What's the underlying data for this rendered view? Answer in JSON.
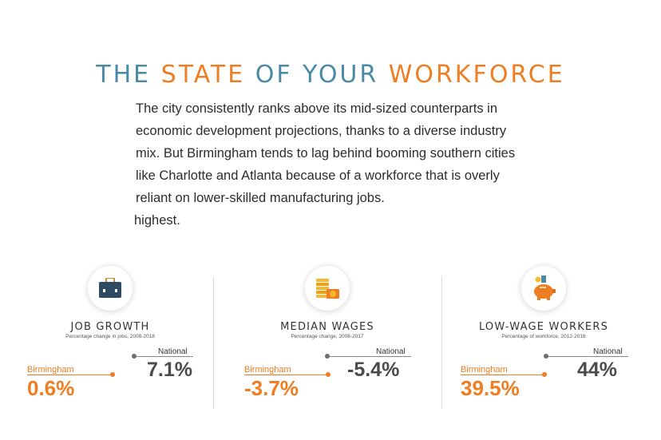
{
  "header": {
    "title_part1": "THE ",
    "title_part2": "STATE",
    "title_part3": " OF YOUR ",
    "title_part4": "WORKFORCE"
  },
  "intro": {
    "lines": [
      "The city consistently ranks above its mid-sized counterparts in",
      "economic development projections, thanks to a diverse industry",
      "mix. But Birmingham tends to lag behind booming southern cities",
      "like Charlotte and Atlanta because of a workforce that is overly",
      "reliant on lower-skilled manufacturing jobs."
    ],
    "tail": "highest."
  },
  "colors": {
    "accent": "#ef7d22",
    "title_blue": "#4a8aa6",
    "dark": "#4b4b4b"
  },
  "stats": [
    {
      "icon": "briefcase-icon",
      "title": "JOB GROWTH",
      "subtitle": "Percentage change in jobs, 2008-2018",
      "national_label": "National",
      "national_value": "7.1%",
      "birmingham_label": "Birmingham",
      "birmingham_value": "0.6%"
    },
    {
      "icon": "coins-icon",
      "title": "MEDIAN WAGES",
      "subtitle": "Percentage change, 2008-2017",
      "national_label": "National",
      "national_value": "-5.4%",
      "birmingham_label": "Birmingham",
      "birmingham_value": "-3.7%"
    },
    {
      "icon": "piggy-bank-icon",
      "title": "LOW-WAGE WORKERS",
      "subtitle": "Percentage of workforce, 2012-2016",
      "national_label": "National",
      "national_value": "44%",
      "birmingham_label": "Birmingham",
      "birmingham_value": "39.5%"
    }
  ]
}
